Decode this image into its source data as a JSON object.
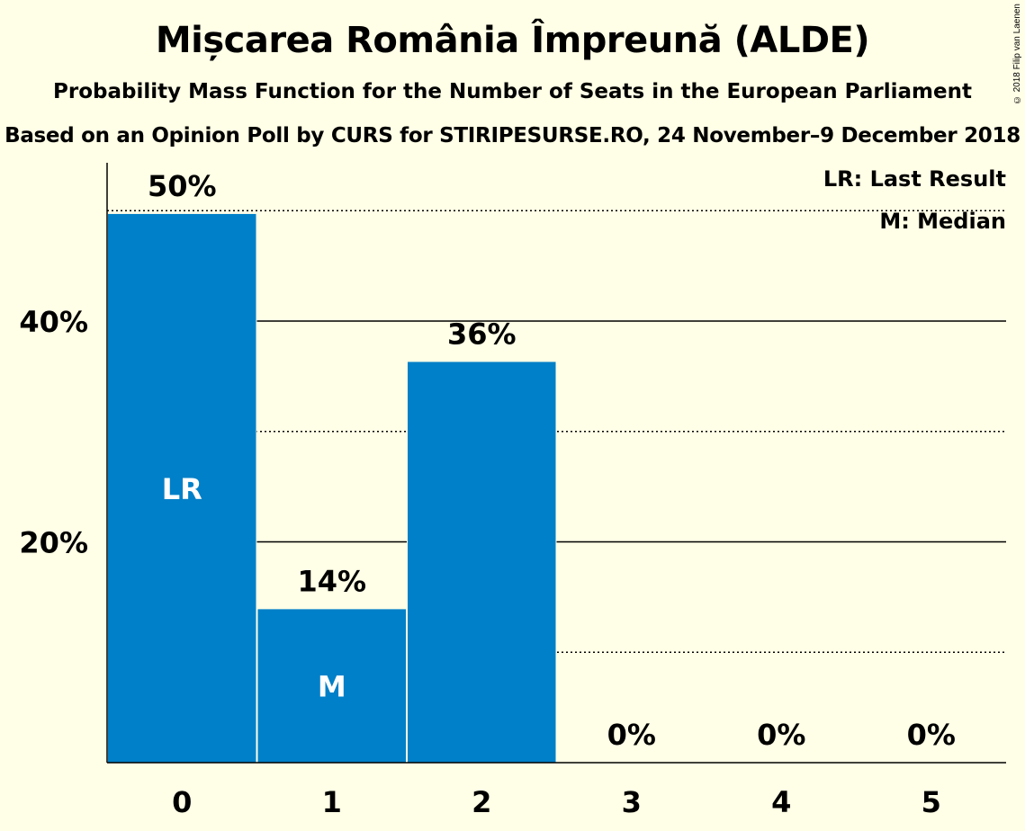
{
  "title": "Mișcarea România Împreună (ALDE)",
  "subtitle": "Probability Mass Function for the Number of Seats in the European Parliament",
  "source": "Based on an Opinion Poll by CURS for STIRIPESURSE.RO, 24 November–9 December 2018",
  "copyright": "© 2018 Filip van Laenen",
  "legend": {
    "last_result": "LR: Last Result",
    "median": "M: Median"
  },
  "colors": {
    "background": "#FFFEE6",
    "bar": "#0080C8",
    "bar_label_inside": "#FFFFFF",
    "text": "#000000"
  },
  "chart_data": {
    "type": "bar",
    "categories": [
      "0",
      "1",
      "2",
      "3",
      "4",
      "5"
    ],
    "values": [
      49.7,
      13.9,
      36.3,
      0,
      0,
      0
    ],
    "data_labels": [
      "50%",
      "14%",
      "36%",
      "0%",
      "0%",
      "0%"
    ],
    "bar_markers": [
      "LR",
      "M",
      "",
      "",
      "",
      ""
    ],
    "ylim": [
      0,
      54
    ],
    "y_ticks": [
      {
        "value": 20,
        "label": "20%"
      },
      {
        "value": 40,
        "label": "40%"
      }
    ],
    "gridlines": {
      "solid": [
        20,
        40
      ],
      "dotted": [
        10,
        30,
        50
      ]
    },
    "legend_position": "top-right"
  }
}
